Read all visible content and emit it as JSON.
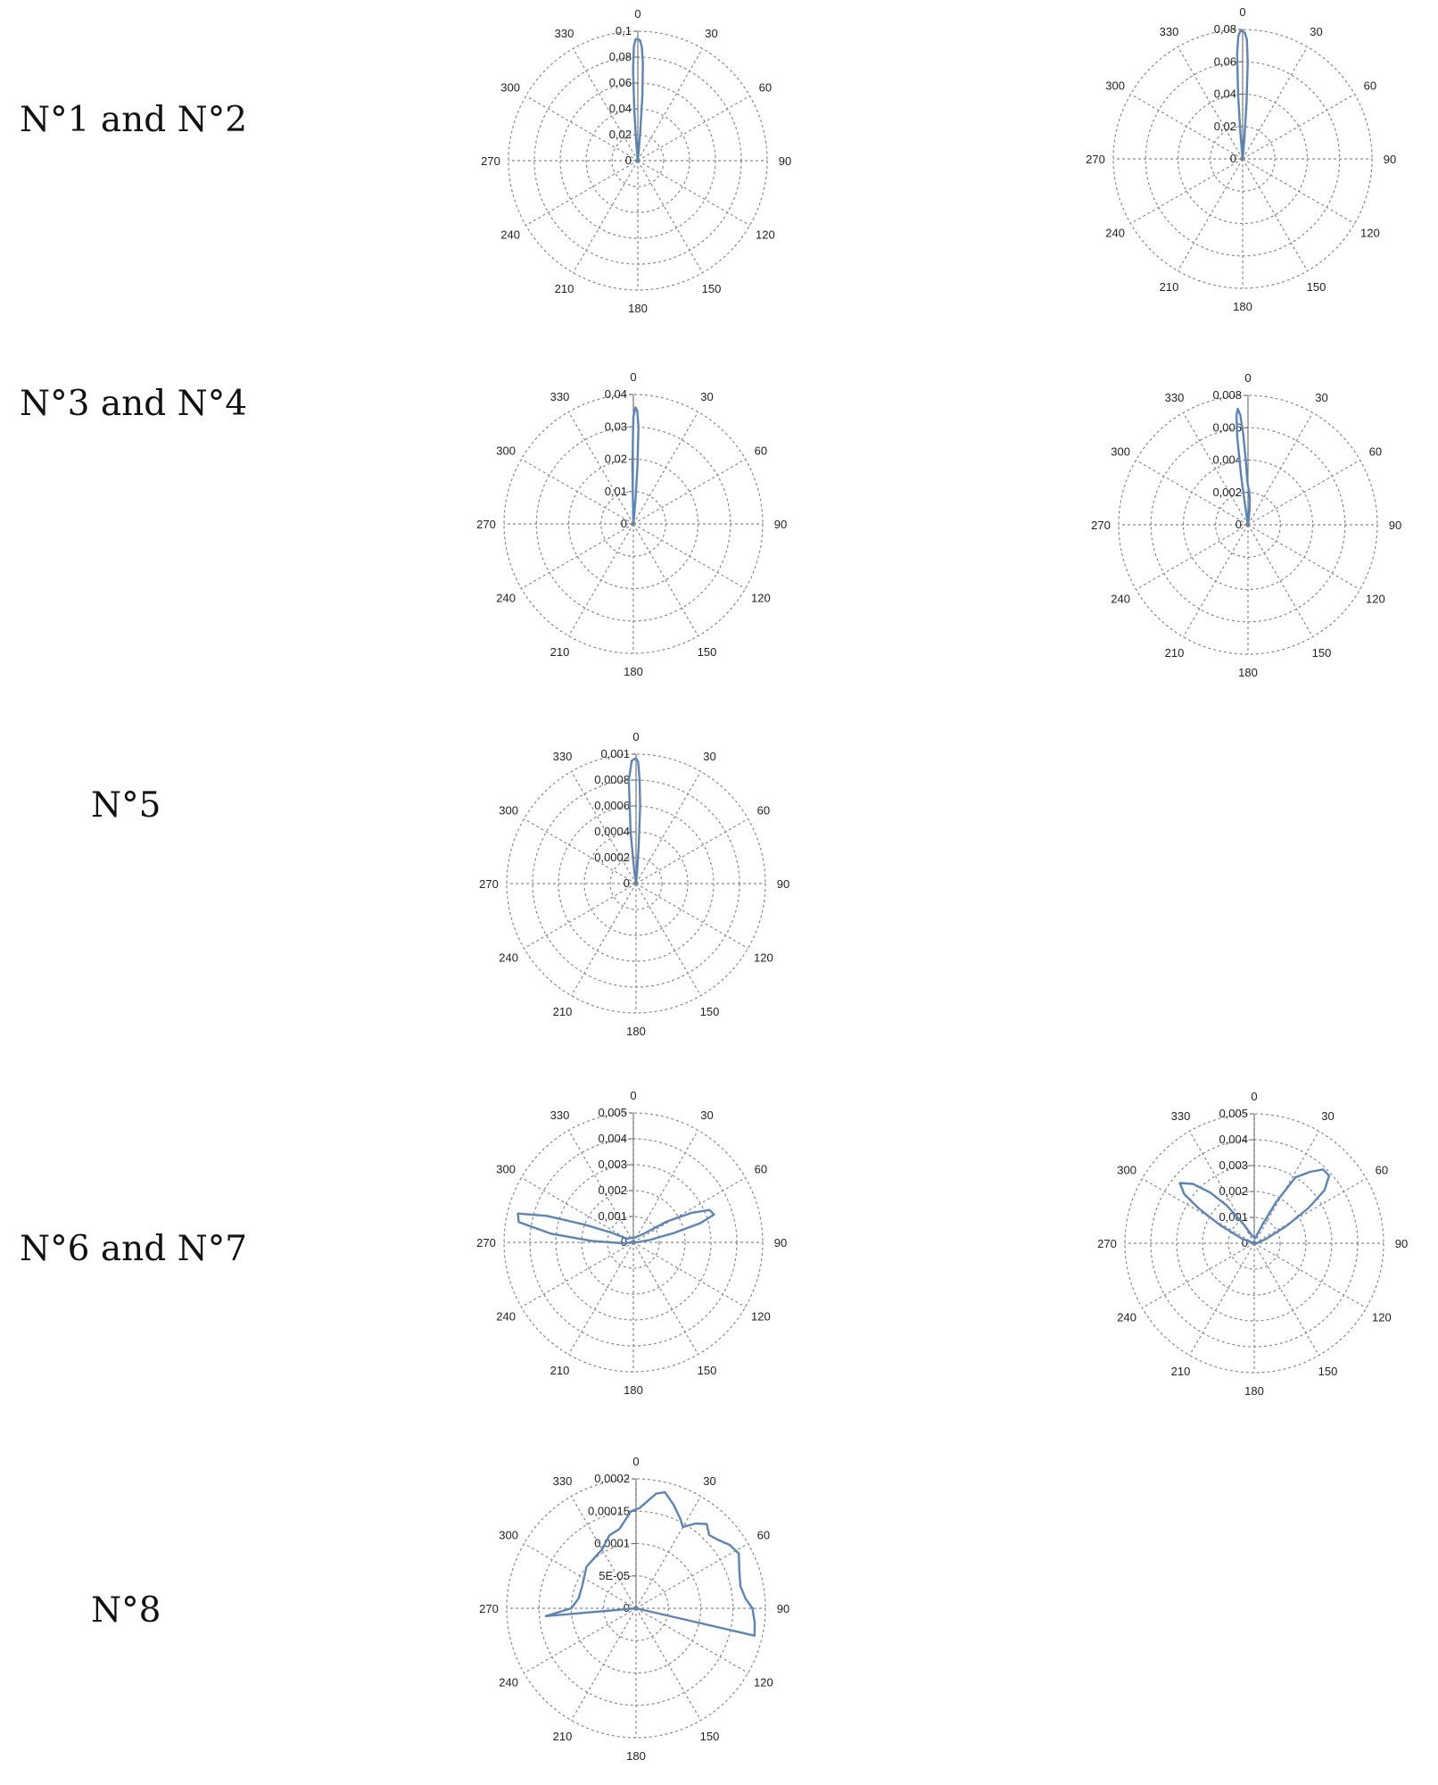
{
  "row_labels": [
    "N°1 and N°2",
    "N°3 and N°4",
    "N°5",
    "N°6 and N°7",
    "N°8"
  ],
  "series_color": "#5b84b8",
  "grid_color": "#8a8a8a",
  "chart_data": [
    {
      "type": "polar",
      "panel": "N°1",
      "angular_ticks": [
        "0",
        "30",
        "60",
        "90",
        "120",
        "150",
        "180",
        "210",
        "240",
        "270",
        "300",
        "330"
      ],
      "radial_ticks": [
        "0",
        "0,02",
        "0,04",
        "0,06",
        "0,08",
        "0,1"
      ],
      "rmax": 0.1,
      "points": [
        [
          -6,
          0.002
        ],
        [
          -5,
          0.015
        ],
        [
          -4,
          0.04
        ],
        [
          -3,
          0.07
        ],
        [
          -2,
          0.088
        ],
        [
          -1,
          0.094
        ],
        [
          0,
          0.094
        ],
        [
          1,
          0.093
        ],
        [
          2,
          0.088
        ],
        [
          3,
          0.075
        ],
        [
          4,
          0.05
        ],
        [
          5,
          0.02
        ],
        [
          6,
          0.004
        ]
      ]
    },
    {
      "type": "polar",
      "panel": "N°2",
      "angular_ticks": [
        "0",
        "30",
        "60",
        "90",
        "120",
        "150",
        "180",
        "210",
        "240",
        "270",
        "300",
        "330"
      ],
      "radial_ticks": [
        "0",
        "0,02",
        "0,04",
        "0,06",
        "0,08"
      ],
      "rmax": 0.08,
      "points": [
        [
          -6,
          0.002
        ],
        [
          -5,
          0.015
        ],
        [
          -4,
          0.04
        ],
        [
          -3,
          0.065
        ],
        [
          -2,
          0.076
        ],
        [
          -1,
          0.079
        ],
        [
          0,
          0.079
        ],
        [
          1,
          0.078
        ],
        [
          2,
          0.074
        ],
        [
          3,
          0.06
        ],
        [
          4,
          0.035
        ],
        [
          5,
          0.012
        ],
        [
          6,
          0.002
        ]
      ]
    },
    {
      "type": "polar",
      "panel": "N°3",
      "angular_ticks": [
        "0",
        "30",
        "60",
        "90",
        "120",
        "150",
        "180",
        "210",
        "240",
        "270",
        "300",
        "330"
      ],
      "radial_ticks": [
        "0",
        "0,01",
        "0,02",
        "0,03",
        "0,04"
      ],
      "rmax": 0.04,
      "points": [
        [
          -2,
          0.001
        ],
        [
          -1,
          0.018
        ],
        [
          0,
          0.033
        ],
        [
          1,
          0.036
        ],
        [
          2,
          0.035
        ],
        [
          3,
          0.03
        ],
        [
          4,
          0.018
        ],
        [
          5,
          0.008
        ],
        [
          6,
          0.001
        ]
      ]
    },
    {
      "type": "polar",
      "panel": "N°4",
      "angular_ticks": [
        "0",
        "30",
        "60",
        "90",
        "120",
        "150",
        "180",
        "210",
        "240",
        "270",
        "300",
        "330"
      ],
      "radial_ticks": [
        "0",
        "0,002",
        "0,004",
        "0,006",
        "0,008"
      ],
      "rmax": 0.008,
      "points": [
        [
          -9,
          0.0003
        ],
        [
          -8,
          0.003
        ],
        [
          -7,
          0.0055
        ],
        [
          -6,
          0.0068
        ],
        [
          -5,
          0.0072
        ],
        [
          -4,
          0.0068
        ],
        [
          -3,
          0.0056
        ],
        [
          -2,
          0.004
        ],
        [
          -1,
          0.0028
        ],
        [
          0,
          0.0024
        ],
        [
          2,
          0.0021
        ],
        [
          4,
          0.0016
        ],
        [
          6,
          0.001
        ],
        [
          8,
          0.0002
        ]
      ]
    },
    {
      "type": "polar",
      "panel": "N°5",
      "angular_ticks": [
        "0",
        "30",
        "60",
        "90",
        "120",
        "150",
        "180",
        "210",
        "240",
        "270",
        "300",
        "330"
      ],
      "radial_ticks": [
        "0",
        "0,0002",
        "0,0004",
        "0,0006",
        "0,0008",
        "0,001"
      ],
      "rmax": 0.001,
      "points": [
        [
          -8,
          0.0001
        ],
        [
          -6,
          0.0004
        ],
        [
          -4,
          0.0008
        ],
        [
          -2,
          0.00095
        ],
        [
          0,
          0.00097
        ],
        [
          1,
          0.00094
        ],
        [
          2,
          0.0008
        ],
        [
          3,
          0.0006
        ],
        [
          4,
          0.0003
        ],
        [
          5,
          0.0001
        ]
      ]
    },
    {
      "type": "polar",
      "panel": "N°6",
      "angular_ticks": [
        "0",
        "30",
        "60",
        "90",
        "120",
        "150",
        "180",
        "210",
        "240",
        "270",
        "300",
        "330"
      ],
      "radial_ticks": [
        "0",
        "0,001",
        "0,002",
        "0,003",
        "0,004",
        "0,005"
      ],
      "rmax": 0.005,
      "points": [
        [
          265,
          0.0004
        ],
        [
          272,
          0.0016
        ],
        [
          276,
          0.0032
        ],
        [
          280,
          0.0045
        ],
        [
          284,
          0.0046
        ],
        [
          287,
          0.0035
        ],
        [
          290,
          0.002
        ],
        [
          294,
          0.0009
        ],
        [
          300,
          0.0003
        ],
        [
          20,
          0.0002
        ],
        [
          50,
          0.0005
        ],
        [
          58,
          0.0015
        ],
        [
          63,
          0.0025
        ],
        [
          67,
          0.0032
        ],
        [
          71,
          0.0033
        ],
        [
          74,
          0.0027
        ],
        [
          77,
          0.0016
        ],
        [
          82,
          0.0006
        ],
        [
          90,
          0.0001
        ]
      ]
    },
    {
      "type": "polar",
      "panel": "N°7",
      "angular_ticks": [
        "0",
        "30",
        "60",
        "90",
        "120",
        "150",
        "180",
        "210",
        "240",
        "270",
        "300",
        "330"
      ],
      "radial_ticks": [
        "0",
        "0,001",
        "0,002",
        "0,003",
        "0,004",
        "0,005"
      ],
      "rmax": 0.005,
      "points": [
        [
          290,
          0.0005
        ],
        [
          298,
          0.0015
        ],
        [
          302,
          0.0025
        ],
        [
          305,
          0.0033
        ],
        [
          309,
          0.0037
        ],
        [
          314,
          0.0033
        ],
        [
          319,
          0.0026
        ],
        [
          324,
          0.0018
        ],
        [
          330,
          0.0009
        ],
        [
          345,
          0.0003
        ],
        [
          10,
          0.0002
        ],
        [
          24,
          0.0008
        ],
        [
          28,
          0.0018
        ],
        [
          32,
          0.003
        ],
        [
          38,
          0.0035
        ],
        [
          43,
          0.0039
        ],
        [
          48,
          0.0039
        ],
        [
          53,
          0.0034
        ],
        [
          57,
          0.0025
        ],
        [
          62,
          0.0014
        ],
        [
          70,
          0.0005
        ],
        [
          90,
          0.0001
        ]
      ]
    },
    {
      "type": "polar",
      "panel": "N°8",
      "angular_ticks": [
        "0",
        "30",
        "60",
        "90",
        "120",
        "150",
        "180",
        "210",
        "240",
        "270",
        "300",
        "330"
      ],
      "radial_ticks": [
        "0",
        "5E-05",
        "0,0001",
        "0,00015",
        "0,0002"
      ],
      "rmax": 0.0002,
      "points": [
        [
          265,
          0.00014
        ],
        [
          270,
          0.0001
        ],
        [
          280,
          9e-05
        ],
        [
          292,
          9e-05
        ],
        [
          310,
          0.0001
        ],
        [
          330,
          0.000105
        ],
        [
          340,
          0.00012
        ],
        [
          348,
          0.000125
        ],
        [
          357,
          0.00015
        ],
        [
          2,
          0.000155
        ],
        [
          10,
          0.00018
        ],
        [
          14,
          0.000185
        ],
        [
          20,
          0.00017
        ],
        [
          26,
          0.000155
        ],
        [
          30,
          0.000145
        ],
        [
          35,
          0.00016
        ],
        [
          40,
          0.00017
        ],
        [
          45,
          0.00016
        ],
        [
          50,
          0.000165
        ],
        [
          56,
          0.000175
        ],
        [
          62,
          0.00018
        ],
        [
          70,
          0.00017
        ],
        [
          78,
          0.000165
        ],
        [
          85,
          0.00017
        ],
        [
          90,
          0.00018
        ],
        [
          97,
          0.000185
        ],
        [
          103,
          0.000188
        ]
      ]
    }
  ]
}
